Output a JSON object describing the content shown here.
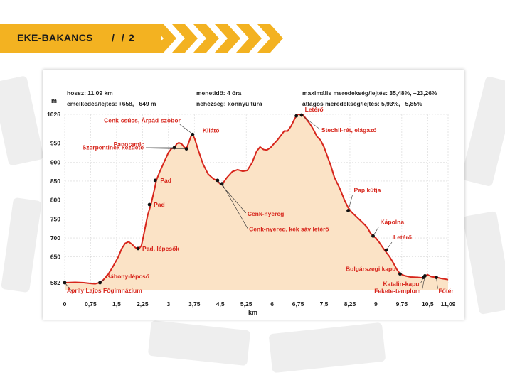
{
  "header": {
    "title": "EKE-BAKANCS",
    "separator": "/ /",
    "page_number": "2"
  },
  "stats": {
    "length": "hossz: 11,09 km",
    "elevation": "emelkedés/lejtés: +658, –649 m",
    "time": "menetidő: 4 óra",
    "difficulty": "nehézség: könnyű túra",
    "max_slope": "maximális meredekség/lejtés: 35,48%, –23,26%",
    "avg_slope": "átlagos meredekség/lejtés: 5,93%, –5,85%"
  },
  "colors": {
    "accent": "#f3b221",
    "line": "#d7261c",
    "fill": "#fbe3c6",
    "label": "#d7261c"
  },
  "chart_data": {
    "type": "area",
    "title": "",
    "xlabel": "km",
    "ylabel": "m",
    "x_ticks": [
      {
        "v": 0,
        "label": "0"
      },
      {
        "v": 0.75,
        "label": "0,75"
      },
      {
        "v": 1.5,
        "label": "1,5"
      },
      {
        "v": 2.25,
        "label": "2,25"
      },
      {
        "v": 3,
        "label": "3"
      },
      {
        "v": 3.75,
        "label": "3,75"
      },
      {
        "v": 4.5,
        "label": "4,5"
      },
      {
        "v": 5.25,
        "label": "5,25"
      },
      {
        "v": 6,
        "label": "6"
      },
      {
        "v": 6.75,
        "label": "6,75"
      },
      {
        "v": 7.5,
        "label": "7,5"
      },
      {
        "v": 8.25,
        "label": "8,25"
      },
      {
        "v": 9,
        "label": "9"
      },
      {
        "v": 9.75,
        "label": "9,75"
      },
      {
        "v": 10.5,
        "label": "10,5"
      },
      {
        "v": 11.09,
        "label": "11,09"
      }
    ],
    "y_ticks": [
      {
        "v": 582,
        "label": "582"
      },
      {
        "v": 650,
        "label": "650"
      },
      {
        "v": 700,
        "label": "700"
      },
      {
        "v": 750,
        "label": "750"
      },
      {
        "v": 800,
        "label": "800"
      },
      {
        "v": 850,
        "label": "850"
      },
      {
        "v": 900,
        "label": "900"
      },
      {
        "v": 950,
        "label": "950"
      },
      {
        "v": 1026,
        "label": "1026"
      }
    ],
    "xlim": [
      0,
      11.09
    ],
    "ylim": [
      582,
      1026
    ],
    "grid": true,
    "profile": [
      [
        0,
        582
      ],
      [
        0.3,
        583
      ],
      [
        0.55,
        582
      ],
      [
        0.75,
        580
      ],
      [
        0.88,
        579
      ],
      [
        1.0,
        582
      ],
      [
        1.1,
        588
      ],
      [
        1.25,
        603
      ],
      [
        1.4,
        625
      ],
      [
        1.55,
        650
      ],
      [
        1.65,
        672
      ],
      [
        1.75,
        686
      ],
      [
        1.85,
        690
      ],
      [
        1.95,
        683
      ],
      [
        2.05,
        674
      ],
      [
        2.15,
        672
      ],
      [
        2.22,
        680
      ],
      [
        2.3,
        715
      ],
      [
        2.4,
        760
      ],
      [
        2.5,
        790
      ],
      [
        2.6,
        830
      ],
      [
        2.65,
        852
      ],
      [
        2.75,
        875
      ],
      [
        2.9,
        905
      ],
      [
        3.0,
        925
      ],
      [
        3.08,
        935
      ],
      [
        3.17,
        938
      ],
      [
        3.24,
        948
      ],
      [
        3.3,
        951
      ],
      [
        3.38,
        948
      ],
      [
        3.45,
        940
      ],
      [
        3.52,
        935
      ],
      [
        3.6,
        955
      ],
      [
        3.66,
        970
      ],
      [
        3.7,
        973
      ],
      [
        3.76,
        962
      ],
      [
        3.85,
        935
      ],
      [
        4.0,
        895
      ],
      [
        4.15,
        868
      ],
      [
        4.3,
        856
      ],
      [
        4.42,
        850
      ],
      [
        4.5,
        842
      ],
      [
        4.58,
        845
      ],
      [
        4.7,
        860
      ],
      [
        4.85,
        875
      ],
      [
        5.0,
        880
      ],
      [
        5.15,
        876
      ],
      [
        5.28,
        878
      ],
      [
        5.42,
        898
      ],
      [
        5.55,
        928
      ],
      [
        5.65,
        940
      ],
      [
        5.75,
        933
      ],
      [
        5.85,
        932
      ],
      [
        5.95,
        938
      ],
      [
        6.05,
        948
      ],
      [
        6.15,
        958
      ],
      [
        6.25,
        970
      ],
      [
        6.35,
        982
      ],
      [
        6.45,
        982
      ],
      [
        6.55,
        995
      ],
      [
        6.63,
        1010
      ],
      [
        6.7,
        1022
      ],
      [
        6.75,
        1026
      ],
      [
        6.82,
        1026
      ],
      [
        6.9,
        1024
      ],
      [
        7.0,
        1012
      ],
      [
        7.1,
        1000
      ],
      [
        7.2,
        985
      ],
      [
        7.3,
        967
      ],
      [
        7.4,
        958
      ],
      [
        7.5,
        940
      ],
      [
        7.6,
        915
      ],
      [
        7.7,
        890
      ],
      [
        7.8,
        860
      ],
      [
        7.95,
        832
      ],
      [
        8.1,
        798
      ],
      [
        8.2,
        780
      ],
      [
        8.3,
        768
      ],
      [
        8.45,
        755
      ],
      [
        8.6,
        742
      ],
      [
        8.75,
        728
      ],
      [
        8.85,
        712
      ],
      [
        8.92,
        705
      ],
      [
        9.0,
        700
      ],
      [
        9.1,
        688
      ],
      [
        9.2,
        675
      ],
      [
        9.3,
        662
      ],
      [
        9.4,
        650
      ],
      [
        9.5,
        635
      ],
      [
        9.6,
        618
      ],
      [
        9.7,
        605
      ],
      [
        9.85,
        600
      ],
      [
        10.0,
        597
      ],
      [
        10.2,
        596
      ],
      [
        10.35,
        595
      ],
      [
        10.42,
        600
      ],
      [
        10.5,
        603
      ],
      [
        10.6,
        598
      ],
      [
        10.75,
        596
      ],
      [
        10.9,
        593
      ],
      [
        11.09,
        590
      ]
    ],
    "points": [
      {
        "x": 0.0,
        "y": 582,
        "label": "Áprily Lajos Főgimnázium"
      },
      {
        "x": 1.02,
        "y": 582,
        "label": "Gábony-lépcső"
      },
      {
        "x": 2.12,
        "y": 672,
        "label": "Pad, lépcsők"
      },
      {
        "x": 2.45,
        "y": 788,
        "label": "Pad"
      },
      {
        "x": 2.62,
        "y": 852,
        "label": "Pad"
      },
      {
        "x": 3.17,
        "y": 938,
        "label": "Panoramic"
      },
      {
        "x": 3.52,
        "y": 935,
        "label": "Szerpentinek kezdete"
      },
      {
        "x": 3.7,
        "y": 973,
        "label": "Kilátó"
      },
      {
        "x": 4.42,
        "y": 852,
        "label": "Cenk-nyereg"
      },
      {
        "x": 4.55,
        "y": 843,
        "label": "Cenk-nyereg, kék sáv letérő"
      },
      {
        "x": 6.7,
        "y": 1022,
        "label": "Letérő"
      },
      {
        "x": 6.85,
        "y": 1024,
        "label": "Stechil-rét, elágazó"
      },
      {
        "x": 8.2,
        "y": 772,
        "label": "Pap kútja"
      },
      {
        "x": 8.92,
        "y": 705,
        "label": "Kápolna"
      },
      {
        "x": 9.3,
        "y": 668,
        "label": "Letérő"
      },
      {
        "x": 9.7,
        "y": 605,
        "label": "Bolgárszegi kapu"
      },
      {
        "x": 10.38,
        "y": 596,
        "label": "Katalin-kapu"
      },
      {
        "x": 10.42,
        "y": 600,
        "label": "Fekete-templom"
      },
      {
        "x": 10.75,
        "y": 596,
        "label": "Főtér"
      }
    ],
    "summit_labels": [
      {
        "text": "Cenk-csúcs, Árpád-szobor"
      }
    ]
  }
}
